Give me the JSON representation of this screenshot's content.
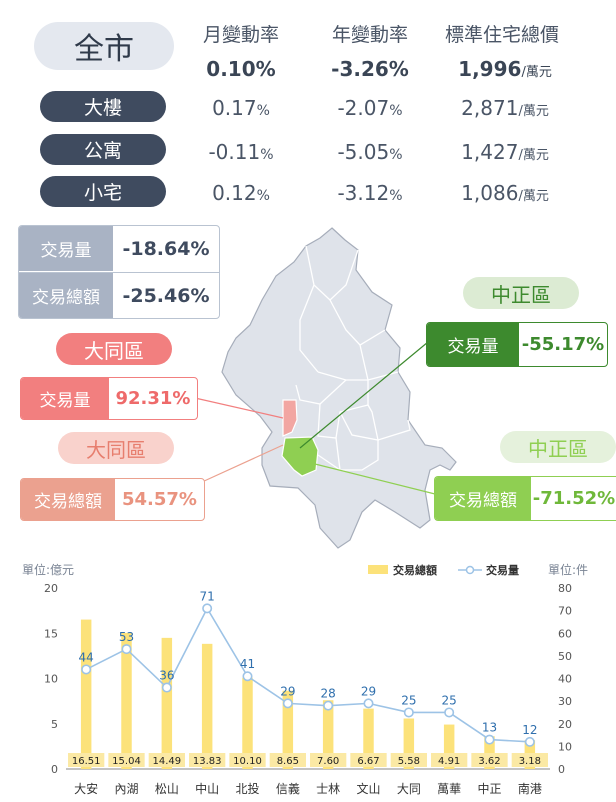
{
  "summary": {
    "city_label": "全市",
    "headers": [
      "月變動率",
      "年變動率",
      "標準住宅總價"
    ],
    "city_row": {
      "monthly": "0.10",
      "yearly": "-3.26",
      "total": "1,996"
    },
    "pct": "%",
    "unit": "/萬元",
    "rows": [
      {
        "label": "大樓",
        "monthly": "0.17",
        "yearly": "-2.07",
        "total": "2,871"
      },
      {
        "label": "公寓",
        "monthly": "-0.11",
        "yearly": "-5.05",
        "total": "1,427"
      },
      {
        "label": "小宅",
        "monthly": "0.12",
        "yearly": "-3.12",
        "total": "1,086"
      }
    ]
  },
  "city_stats": {
    "volume_label": "交易量",
    "volume_value": "-18.64%",
    "amount_label": "交易總額",
    "amount_value": "-25.46%"
  },
  "highlights": {
    "datong_volume": {
      "district": "大同區",
      "label": "交易量",
      "value": "92.31%"
    },
    "datong_amount": {
      "district": "大同區",
      "label": "交易總額",
      "value": "54.57%"
    },
    "zhongzheng_volume": {
      "district": "中正區",
      "label": "交易量",
      "value": "-55.17%"
    },
    "zhongzheng_amount": {
      "district": "中正區",
      "label": "交易總額",
      "value": "-71.52%"
    }
  },
  "colors": {
    "navy": "#3f4b5f",
    "slate": "#a9b3c4",
    "red": "#f27f7f",
    "red_light": "#f6c9c2",
    "salmon": "#eba18f",
    "green": "#3d8a2e",
    "green_light": "#8fcf52",
    "green_pale": "#dcebd3",
    "bar": "#fce27a",
    "line": "#9dc3e6",
    "label_blue": "#2f6fad"
  },
  "chart_data": {
    "type": "bar",
    "categories": [
      "大安",
      "內湖",
      "松山",
      "中山",
      "北投",
      "信義",
      "士林",
      "文山",
      "大同",
      "萬華",
      "中正",
      "南港"
    ],
    "series": [
      {
        "name": "交易總額",
        "type": "bar",
        "axis": "left",
        "values": [
          16.51,
          15.04,
          14.49,
          13.83,
          10.1,
          8.65,
          7.6,
          6.67,
          5.58,
          4.91,
          3.62,
          3.18
        ],
        "labels": [
          "16.51",
          "15.04",
          "14.49",
          "13.83",
          "10.10",
          "8.65",
          "7.60",
          "6.67",
          "5.58",
          "4.91",
          "3.62",
          "3.18"
        ]
      },
      {
        "name": "交易量",
        "type": "line",
        "axis": "right",
        "values": [
          44,
          53,
          36,
          71,
          41,
          29,
          28,
          29,
          25,
          25,
          13,
          12
        ]
      }
    ],
    "ylabel_left": "單位:億元",
    "ylabel_right": "單位:件",
    "ylim_left": [
      0,
      20
    ],
    "yticks_left": [
      0,
      5,
      10,
      15,
      20
    ],
    "ylim_right": [
      0,
      80
    ],
    "yticks_right": [
      0,
      10,
      20,
      30,
      40,
      50,
      60,
      70,
      80
    ],
    "legend_position": "top-right",
    "grid": false
  }
}
